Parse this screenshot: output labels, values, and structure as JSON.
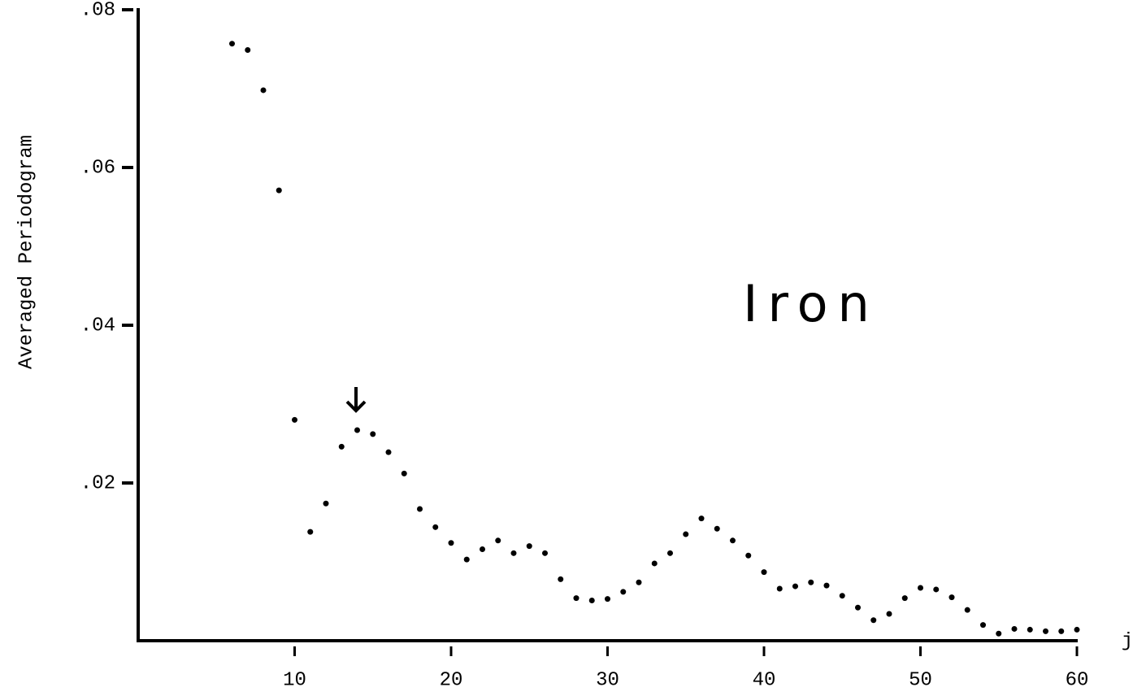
{
  "chart_data": {
    "type": "scatter",
    "ylabel": "Averaged Periodogram",
    "xlabel": "j",
    "annotation": "Iron",
    "color": "#000000",
    "xlim": [
      0,
      60
    ],
    "xticks": [
      10,
      20,
      30,
      40,
      50,
      60
    ],
    "ylim": [
      0,
      0.08
    ],
    "yticks": [
      {
        "value": 0.02,
        "label": ".02"
      },
      {
        "value": 0.04,
        "label": ".04"
      },
      {
        "value": 0.06,
        "label": ".06"
      },
      {
        "value": 0.08,
        "label": ".08"
      }
    ],
    "x": [
      6,
      7,
      8,
      9,
      10,
      11,
      12,
      13,
      14,
      15,
      16,
      17,
      18,
      19,
      20,
      21,
      22,
      23,
      24,
      25,
      26,
      27,
      28,
      29,
      30,
      31,
      32,
      33,
      34,
      35,
      36,
      37,
      38,
      39,
      40,
      41,
      42,
      43,
      44,
      45,
      46,
      47,
      48,
      49,
      50,
      51,
      52,
      53,
      54,
      55,
      56,
      57,
      58,
      59,
      60
    ],
    "values": [
      0.0757,
      0.0749,
      0.0698,
      0.0571,
      0.028,
      0.0138,
      0.0174,
      0.0246,
      0.0267,
      0.0262,
      0.0239,
      0.0212,
      0.0167,
      0.0144,
      0.0124,
      0.0103,
      0.0116,
      0.0127,
      0.0111,
      0.012,
      0.0111,
      0.0078,
      0.0054,
      0.0051,
      0.0053,
      0.0062,
      0.0074,
      0.0098,
      0.0111,
      0.0135,
      0.0155,
      0.0142,
      0.0127,
      0.0108,
      0.0087,
      0.0066,
      0.0069,
      0.0074,
      0.007,
      0.0057,
      0.0042,
      0.0026,
      0.0034,
      0.0054,
      0.0067,
      0.0065,
      0.0055,
      0.0039,
      0.002,
      0.0009,
      0.0015,
      0.0014,
      0.0012,
      0.0012,
      0.0014
    ]
  }
}
